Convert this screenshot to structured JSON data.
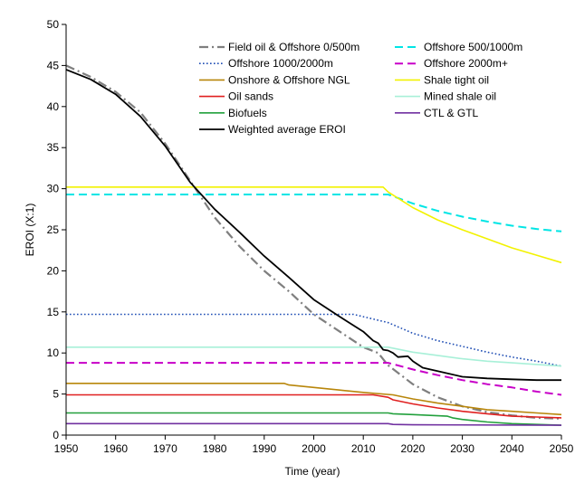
{
  "chart_data": {
    "type": "line",
    "title": "",
    "xlabel": "Time (year)",
    "ylabel": "EROI (X:1)",
    "xlim": [
      1950,
      2050
    ],
    "ylim": [
      0,
      50
    ],
    "xticks": [
      1950,
      1960,
      1970,
      1980,
      1990,
      2000,
      2010,
      2020,
      2030,
      2040,
      2050
    ],
    "yticks": [
      0,
      5,
      10,
      15,
      20,
      25,
      30,
      35,
      40,
      45,
      50
    ],
    "grid": false,
    "legend": "top-right",
    "series": [
      {
        "name": "Field oil & Offshore 0/500m",
        "color": "#7f7f7f",
        "dash": "dashdot",
        "width": 2.2,
        "points": [
          [
            1950,
            45
          ],
          [
            1955,
            43.6
          ],
          [
            1960,
            41.8
          ],
          [
            1965,
            39.3
          ],
          [
            1970,
            35.5
          ],
          [
            1975,
            31
          ],
          [
            1980,
            26.5
          ],
          [
            1985,
            23
          ],
          [
            1990,
            20
          ],
          [
            1995,
            17.5
          ],
          [
            2000,
            14.7
          ],
          [
            2005,
            12.7
          ],
          [
            2010,
            10.7
          ],
          [
            2013,
            10
          ],
          [
            2015,
            8.5
          ],
          [
            2020,
            6.2
          ],
          [
            2025,
            4.6
          ],
          [
            2030,
            3.5
          ],
          [
            2035,
            2.8
          ],
          [
            2040,
            2.4
          ],
          [
            2045,
            2.1
          ],
          [
            2050,
            2
          ]
        ]
      },
      {
        "name": "Offshore 500/1000m",
        "color": "#00e5e5",
        "dash": "dash",
        "width": 2,
        "points": [
          [
            1950,
            29.3
          ],
          [
            2015,
            29.3
          ],
          [
            2020,
            28.2
          ],
          [
            2025,
            27.3
          ],
          [
            2030,
            26.6
          ],
          [
            2035,
            26
          ],
          [
            2040,
            25.5
          ],
          [
            2045,
            25.1
          ],
          [
            2050,
            24.8
          ]
        ]
      },
      {
        "name": "Offshore 1000/2000m",
        "color": "#1f4eb4",
        "dash": "dot",
        "width": 1.6,
        "points": [
          [
            1950,
            14.7
          ],
          [
            2008,
            14.7
          ],
          [
            2015,
            13.7
          ],
          [
            2020,
            12.4
          ],
          [
            2025,
            11.5
          ],
          [
            2030,
            10.8
          ],
          [
            2035,
            10.1
          ],
          [
            2040,
            9.5
          ],
          [
            2045,
            9
          ],
          [
            2050,
            8.4
          ]
        ]
      },
      {
        "name": "Offshore 2000m+",
        "color": "#c800c8",
        "dash": "dash",
        "width": 2,
        "points": [
          [
            1950,
            8.8
          ],
          [
            2015,
            8.8
          ],
          [
            2020,
            8
          ],
          [
            2025,
            7.3
          ],
          [
            2030,
            6.7
          ],
          [
            2035,
            6.2
          ],
          [
            2040,
            5.8
          ],
          [
            2045,
            5.3
          ],
          [
            2050,
            4.9
          ]
        ]
      },
      {
        "name": "Onshore & Offshore NGL",
        "color": "#b8860b",
        "dash": "solid",
        "width": 1.6,
        "points": [
          [
            1950,
            6.3
          ],
          [
            1994,
            6.3
          ],
          [
            1995,
            6.1
          ],
          [
            2000,
            5.8
          ],
          [
            2005,
            5.5
          ],
          [
            2010,
            5.2
          ],
          [
            2016,
            4.9
          ],
          [
            2020,
            4.4
          ],
          [
            2025,
            3.9
          ],
          [
            2030,
            3.5
          ],
          [
            2035,
            3.1
          ],
          [
            2040,
            2.9
          ],
          [
            2045,
            2.7
          ],
          [
            2050,
            2.5
          ]
        ]
      },
      {
        "name": "Shale tight oil",
        "color": "#f2f200",
        "dash": "solid",
        "width": 1.6,
        "points": [
          [
            1950,
            30.2
          ],
          [
            2014,
            30.2
          ],
          [
            2015,
            29.6
          ],
          [
            2020,
            27.7
          ],
          [
            2025,
            26.2
          ],
          [
            2030,
            25
          ],
          [
            2035,
            23.9
          ],
          [
            2040,
            22.8
          ],
          [
            2045,
            21.9
          ],
          [
            2050,
            21
          ]
        ]
      },
      {
        "name": "Oil sands",
        "color": "#e02020",
        "dash": "solid",
        "width": 1.6,
        "points": [
          [
            1950,
            4.9
          ],
          [
            2012,
            4.9
          ],
          [
            2015,
            4.6
          ],
          [
            2016,
            4.3
          ],
          [
            2020,
            3.8
          ],
          [
            2025,
            3.3
          ],
          [
            2030,
            2.9
          ],
          [
            2035,
            2.6
          ],
          [
            2040,
            2.3
          ],
          [
            2045,
            2.2
          ],
          [
            2050,
            2.1
          ]
        ]
      },
      {
        "name": "Mined shale oil",
        "color": "#a8f0d8",
        "dash": "solid",
        "width": 1.6,
        "points": [
          [
            1950,
            10.7
          ],
          [
            2015,
            10.7
          ],
          [
            2020,
            10.1
          ],
          [
            2025,
            9.7
          ],
          [
            2030,
            9.3
          ],
          [
            2035,
            9
          ],
          [
            2040,
            8.8
          ],
          [
            2045,
            8.6
          ],
          [
            2050,
            8.4
          ]
        ]
      },
      {
        "name": "Biofuels",
        "color": "#22a03c",
        "dash": "solid",
        "width": 1.6,
        "points": [
          [
            1950,
            2.7
          ],
          [
            2015,
            2.7
          ],
          [
            2016,
            2.6
          ],
          [
            2020,
            2.5
          ],
          [
            2027,
            2.3
          ],
          [
            2028,
            2.1
          ],
          [
            2030,
            1.9
          ],
          [
            2035,
            1.6
          ],
          [
            2040,
            1.4
          ],
          [
            2045,
            1.3
          ],
          [
            2050,
            1.2
          ]
        ]
      },
      {
        "name": "CTL & GTL",
        "color": "#7030a0",
        "dash": "solid",
        "width": 1.6,
        "points": [
          [
            1950,
            1.4
          ],
          [
            2015,
            1.4
          ],
          [
            2016,
            1.3
          ],
          [
            2020,
            1.25
          ],
          [
            2050,
            1.2
          ]
        ]
      },
      {
        "name": "Weighted average EROI",
        "color": "#000000",
        "dash": "solid",
        "width": 1.8,
        "points": [
          [
            1950,
            44.5
          ],
          [
            1955,
            43.3
          ],
          [
            1960,
            41.5
          ],
          [
            1965,
            38.8
          ],
          [
            1970,
            35.2
          ],
          [
            1975,
            30.8
          ],
          [
            1980,
            27.5
          ],
          [
            1985,
            24.7
          ],
          [
            1990,
            21.8
          ],
          [
            1995,
            19.2
          ],
          [
            2000,
            16.5
          ],
          [
            2005,
            14.5
          ],
          [
            2010,
            12.6
          ],
          [
            2012,
            11.5
          ],
          [
            2013,
            11.2
          ],
          [
            2014,
            10.4
          ],
          [
            2015,
            10.3
          ],
          [
            2016,
            10
          ],
          [
            2017,
            9.5
          ],
          [
            2019,
            9.6
          ],
          [
            2020,
            9
          ],
          [
            2022,
            8.2
          ],
          [
            2025,
            7.8
          ],
          [
            2030,
            7.1
          ],
          [
            2035,
            6.9
          ],
          [
            2040,
            6.8
          ],
          [
            2045,
            6.7
          ],
          [
            2050,
            6.7
          ]
        ]
      }
    ]
  }
}
